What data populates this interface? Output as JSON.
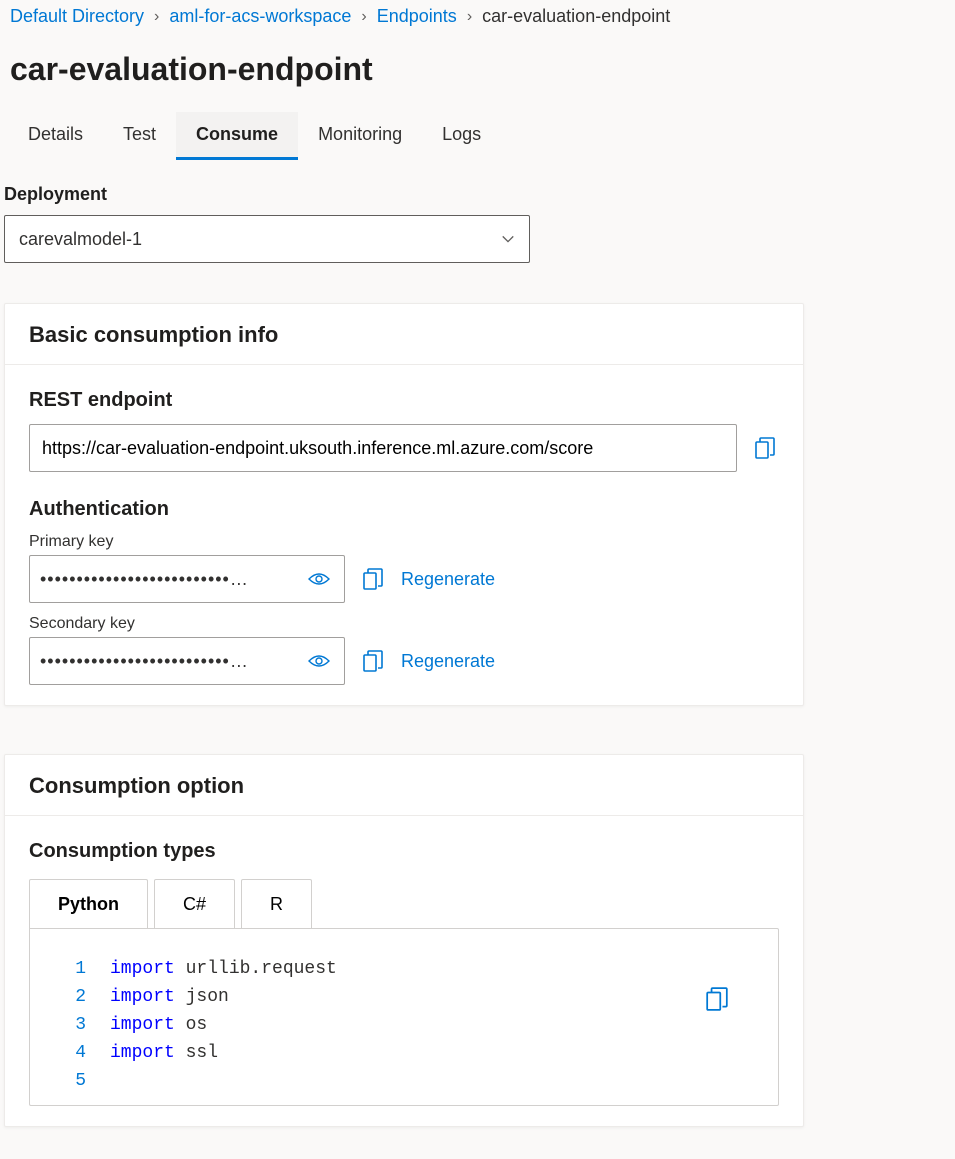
{
  "breadcrumb": {
    "items": [
      {
        "label": "Default Directory",
        "link": true
      },
      {
        "label": "aml-for-acs-workspace",
        "link": true
      },
      {
        "label": "Endpoints",
        "link": true
      },
      {
        "label": "car-evaluation-endpoint",
        "link": false
      }
    ]
  },
  "page_title": "car-evaluation-endpoint",
  "tabs": [
    {
      "label": "Details",
      "active": false
    },
    {
      "label": "Test",
      "active": false
    },
    {
      "label": "Consume",
      "active": true
    },
    {
      "label": "Monitoring",
      "active": false
    },
    {
      "label": "Logs",
      "active": false
    }
  ],
  "deployment": {
    "label": "Deployment",
    "selected": "carevalmodel-1"
  },
  "basic_info": {
    "heading": "Basic consumption info",
    "rest_label": "REST endpoint",
    "rest_value": "https://car-evaluation-endpoint.uksouth.inference.ml.azure.com/score",
    "auth_label": "Authentication",
    "primary_label": "Primary key",
    "primary_value": "••••••••••••••••••••••••••…",
    "secondary_label": "Secondary key",
    "secondary_value": "••••••••••••••••••••••••••…",
    "regenerate_label": "Regenerate"
  },
  "consumption": {
    "heading": "Consumption option",
    "types_label": "Consumption types",
    "tabs": [
      {
        "label": "Python",
        "active": true
      },
      {
        "label": "C#",
        "active": false
      },
      {
        "label": "R",
        "active": false
      }
    ],
    "code_lines": [
      {
        "num": "1",
        "tokens": [
          {
            "t": "import",
            "kw": true
          },
          {
            "t": " urllib.request",
            "kw": false
          }
        ]
      },
      {
        "num": "2",
        "tokens": [
          {
            "t": "import",
            "kw": true
          },
          {
            "t": " json",
            "kw": false
          }
        ]
      },
      {
        "num": "3",
        "tokens": [
          {
            "t": "import",
            "kw": true
          },
          {
            "t": " os",
            "kw": false
          }
        ]
      },
      {
        "num": "4",
        "tokens": [
          {
            "t": "import",
            "kw": true
          },
          {
            "t": " ssl",
            "kw": false
          }
        ]
      },
      {
        "num": "5",
        "tokens": []
      }
    ]
  },
  "colors": {
    "link": "#0078d4",
    "text": "#323130",
    "border": "#a19f9d",
    "bg": "#faf9f8",
    "card_bg": "#ffffff"
  }
}
